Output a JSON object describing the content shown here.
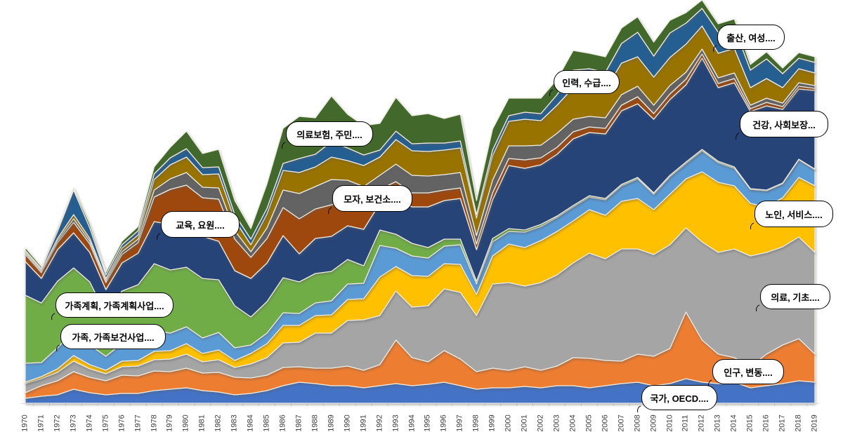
{
  "chart_data": {
    "type": "area",
    "stacked": true,
    "title": "",
    "xlabel": "",
    "ylabel": "",
    "grid": false,
    "legend_position": "none (callout data labels on plot)",
    "background_color": "#FFFFFF",
    "layer_edge_color": "#EFECE3",
    "axis": {
      "line_color": "#D9D9D9",
      "tick_color": "#BFBFBF",
      "label_color": "#404040"
    },
    "x": {
      "years": [
        1970,
        1971,
        1972,
        1973,
        1974,
        1975,
        1976,
        1977,
        1978,
        1979,
        1980,
        1981,
        1982,
        1983,
        1984,
        1985,
        1986,
        1987,
        1988,
        1989,
        1990,
        1991,
        1992,
        1993,
        1994,
        1995,
        1996,
        1997,
        1998,
        1999,
        2000,
        2001,
        2002,
        2003,
        2004,
        2005,
        2006,
        2007,
        2008,
        2009,
        2010,
        2011,
        2012,
        2013,
        2014,
        2015,
        2016,
        2017,
        2018,
        2019
      ]
    },
    "series": [
      {
        "name": "국가, OECD....",
        "color": "#4472C4",
        "values": [
          7,
          10,
          12,
          20,
          15,
          12,
          14,
          14,
          18,
          20,
          22,
          18,
          16,
          12,
          14,
          18,
          25,
          30,
          28,
          25,
          25,
          22,
          25,
          28,
          25,
          27,
          30,
          25,
          20,
          22,
          22,
          24,
          22,
          25,
          25,
          22,
          25,
          28,
          30,
          25,
          28,
          35,
          30,
          28,
          30,
          22,
          25,
          28,
          32,
          30
        ]
      },
      {
        "name": "인구, 변동....",
        "color": "#ED7D31",
        "values": [
          8,
          15,
          20,
          25,
          22,
          20,
          26,
          25,
          28,
          25,
          28,
          25,
          28,
          25,
          22,
          22,
          26,
          22,
          22,
          25,
          28,
          25,
          30,
          62,
          40,
          32,
          45,
          38,
          25,
          28,
          25,
          28,
          25,
          28,
          40,
          42,
          36,
          32,
          40,
          42,
          50,
          95,
          60,
          42,
          35,
          30,
          45,
          55,
          60,
          40
        ]
      },
      {
        "name": "의료, 기초....",
        "color": "#A5A5A5",
        "values": [
          13,
          10,
          12,
          15,
          12,
          10,
          12,
          14,
          16,
          18,
          20,
          16,
          18,
          14,
          20,
          25,
          35,
          35,
          50,
          50,
          65,
          72,
          70,
          70,
          72,
          80,
          88,
          95,
          80,
          120,
          125,
          115,
          125,
          130,
          135,
          150,
          145,
          160,
          150,
          145,
          148,
          120,
          140,
          145,
          155,
          158,
          145,
          140,
          145,
          145
        ]
      },
      {
        "name": "노인, 서비스....",
        "color": "#FFC000",
        "values": [
          2,
          3,
          5,
          8,
          6,
          5,
          8,
          8,
          12,
          12,
          15,
          12,
          14,
          10,
          15,
          20,
          25,
          24,
          25,
          26,
          30,
          30,
          55,
          35,
          45,
          42,
          36,
          40,
          30,
          40,
          55,
          55,
          60,
          62,
          60,
          62,
          62,
          68,
          72,
          64,
          72,
          70,
          100,
          100,
          90,
          75,
          65,
          70,
          85,
          95
        ]
      },
      {
        "name": "가족, 가족보건사업....",
        "color": "#5B9BD5",
        "values": [
          27,
          20,
          30,
          35,
          28,
          20,
          25,
          28,
          30,
          25,
          24,
          22,
          25,
          18,
          12,
          15,
          18,
          17,
          18,
          20,
          22,
          22,
          45,
          26,
          28,
          26,
          25,
          28,
          15,
          20,
          18,
          22,
          20,
          20,
          20,
          18,
          22,
          22,
          28,
          22,
          25,
          22,
          30,
          28,
          25,
          20,
          23,
          20,
          25,
          23
        ]
      },
      {
        "name": "가족계획, 가족계획사업....",
        "color": "#70AD47",
        "values": [
          97,
          85,
          95,
          90,
          90,
          60,
          75,
          80,
          95,
          90,
          85,
          85,
          75,
          60,
          40,
          45,
          50,
          45,
          42,
          42,
          35,
          25,
          22,
          20,
          18,
          15,
          10,
          8,
          4,
          5,
          4,
          3,
          3,
          2,
          2,
          2,
          2,
          2,
          2,
          2,
          2,
          2,
          2,
          2,
          2,
          1,
          1,
          1,
          1,
          1
        ]
      },
      {
        "name": "건강, 사회보장...",
        "color": "#264478",
        "values": [
          48,
          35,
          45,
          50,
          42,
          35,
          40,
          45,
          60,
          65,
          62,
          60,
          55,
          50,
          55,
          55,
          60,
          40,
          50,
          50,
          48,
          52,
          38,
          50,
          52,
          58,
          55,
          58,
          45,
          55,
          90,
          88,
          85,
          88,
          95,
          90,
          92,
          105,
          105,
          105,
          108,
          110,
          130,
          105,
          120,
          110,
          120,
          105,
          100,
          112
        ]
      },
      {
        "name": "교육, 요원....",
        "color": "#9E480E",
        "values": [
          10,
          8,
          10,
          15,
          12,
          10,
          12,
          15,
          35,
          50,
          55,
          55,
          60,
          45,
          30,
          35,
          40,
          50,
          42,
          45,
          35,
          35,
          20,
          25,
          20,
          20,
          15,
          15,
          8,
          10,
          10,
          12,
          10,
          10,
          10,
          8,
          8,
          8,
          10,
          8,
          8,
          8,
          6,
          6,
          6,
          4,
          5,
          4,
          4,
          3
        ]
      },
      {
        "name": "모자, 보건소....",
        "color": "#636363",
        "values": [
          2,
          2,
          3,
          5,
          4,
          3,
          4,
          5,
          10,
          15,
          18,
          15,
          16,
          12,
          8,
          15,
          25,
          36,
          32,
          36,
          30,
          26,
          20,
          25,
          25,
          24,
          22,
          22,
          12,
          18,
          18,
          20,
          18,
          20,
          18,
          15,
          15,
          15,
          15,
          12,
          12,
          10,
          7,
          8,
          8,
          5,
          6,
          5,
          5,
          4
        ]
      },
      {
        "name": "의료보험, 주민....",
        "color": "#997300",
        "values": [
          2,
          2,
          3,
          6,
          4,
          3,
          5,
          6,
          15,
          20,
          22,
          18,
          20,
          15,
          10,
          20,
          28,
          30,
          28,
          32,
          28,
          30,
          26,
          35,
          35,
          35,
          35,
          35,
          25,
          35,
          35,
          38,
          35,
          40,
          45,
          42,
          40,
          45,
          42,
          40,
          40,
          40,
          33,
          35,
          35,
          25,
          28,
          22,
          20,
          18
        ]
      },
      {
        "name": "인력, 수급....",
        "color": "#255E91",
        "values": [
          2,
          2,
          10,
          35,
          15,
          5,
          5,
          6,
          8,
          10,
          12,
          10,
          10,
          8,
          8,
          8,
          10,
          20,
          18,
          22,
          18,
          15,
          10,
          12,
          10,
          12,
          10,
          10,
          5,
          8,
          8,
          10,
          10,
          15,
          25,
          26,
          25,
          28,
          35,
          30,
          35,
          30,
          25,
          30,
          30,
          25,
          28,
          20,
          15,
          15
        ]
      },
      {
        "name": "출산, 여성....",
        "color": "#43682B",
        "values": [
          4,
          3,
          4,
          3,
          6,
          4,
          5,
          6,
          10,
          15,
          25,
          20,
          25,
          20,
          15,
          35,
          50,
          60,
          52,
          65,
          48,
          42,
          38,
          48,
          40,
          42,
          35,
          38,
          20,
          30,
          25,
          20,
          22,
          22,
          28,
          22,
          22,
          22,
          22,
          20,
          18,
          15,
          12,
          12,
          12,
          8,
          10,
          8,
          8,
          8
        ]
      }
    ],
    "labels": [
      {
        "text": "출산, 여성....",
        "series": "출산, 여성...."
      },
      {
        "text": "인력, 수급....",
        "series": "인력, 수급...."
      },
      {
        "text": "건강, 사회보장...",
        "series": "건강, 사회보장..."
      },
      {
        "text": "의료보험, 주민....",
        "series": "의료보험, 주민...."
      },
      {
        "text": "모자, 보건소....",
        "series": "모자, 보건소...."
      },
      {
        "text": "노인, 서비스....",
        "series": "노인, 서비스...."
      },
      {
        "text": "교육, 요원....",
        "series": "교육, 요원...."
      },
      {
        "text": "의료, 기초....",
        "series": "의료, 기초...."
      },
      {
        "text": "가족계획, 가족계획사업....",
        "series": "가족계획, 가족계획사업...."
      },
      {
        "text": "가족, 가족보건사업....",
        "series": "가족, 가족보건사업...."
      },
      {
        "text": "인구, 변동....",
        "series": "인구, 변동...."
      },
      {
        "text": "국가, OECD....",
        "series": "국가, OECD...."
      }
    ]
  }
}
